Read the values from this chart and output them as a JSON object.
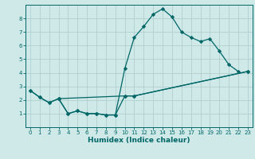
{
  "xlabel": "Humidex (Indice chaleur)",
  "bg_color": "#cfe8e8",
  "grid_color": "#b0d0d0",
  "line_color": "#006666",
  "xlim": [
    -0.5,
    23.5
  ],
  "ylim": [
    0,
    9
  ],
  "xticks": [
    0,
    1,
    2,
    3,
    4,
    5,
    6,
    7,
    8,
    9,
    10,
    11,
    12,
    13,
    14,
    15,
    16,
    17,
    18,
    19,
    20,
    21,
    22,
    23
  ],
  "yticks": [
    1,
    2,
    3,
    4,
    5,
    6,
    7,
    8
  ],
  "line1_x": [
    0,
    1,
    2,
    3,
    4,
    5,
    6,
    7,
    8,
    9,
    10,
    11,
    12,
    13,
    14,
    15,
    16,
    17,
    18,
    19,
    20,
    21,
    22
  ],
  "line1_y": [
    2.7,
    2.2,
    1.8,
    2.1,
    1.0,
    1.2,
    1.0,
    1.0,
    0.9,
    0.9,
    4.3,
    6.6,
    7.4,
    8.3,
    8.7,
    8.1,
    7.0,
    6.6,
    6.3,
    6.5,
    5.6,
    4.6,
    4.1
  ],
  "line2_x": [
    0,
    1,
    2,
    3,
    10,
    11,
    23
  ],
  "line2_y": [
    2.7,
    2.2,
    1.8,
    2.1,
    2.3,
    2.3,
    4.1
  ],
  "line3_x": [
    3,
    4,
    5,
    6,
    7,
    8,
    9,
    10,
    11,
    23
  ],
  "line3_y": [
    2.1,
    1.0,
    1.2,
    1.0,
    1.0,
    0.9,
    0.9,
    2.3,
    2.3,
    4.1
  ]
}
